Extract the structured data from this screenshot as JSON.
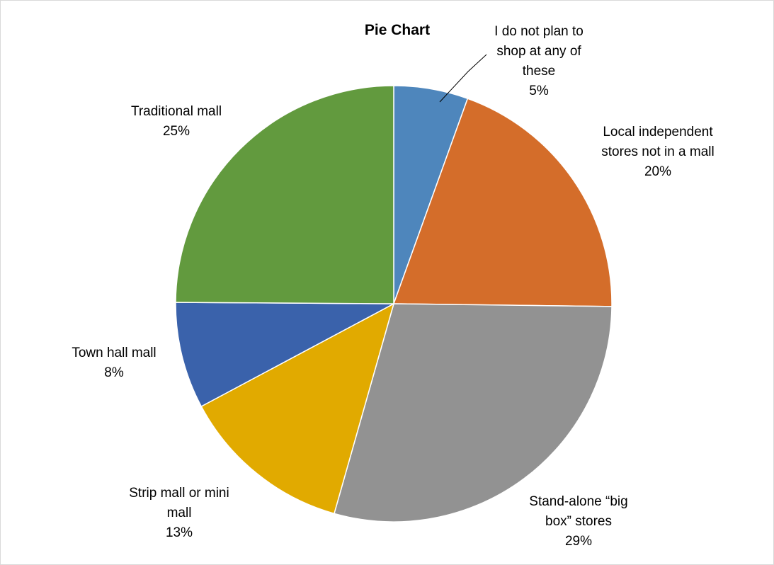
{
  "chart_data": {
    "type": "pie",
    "title": "Pie Chart",
    "slices": [
      {
        "label_lines": [
          "I do not plan to",
          "shop at any of",
          "these"
        ],
        "percent_label": "5%",
        "value": 5.5,
        "color": "#4e86bc"
      },
      {
        "label_lines": [
          "Local independent",
          "stores not in a mall"
        ],
        "percent_label": "20%",
        "value": 19.7,
        "color": "#d46d2a"
      },
      {
        "label_lines": [
          "Stand-alone “big",
          "box” stores"
        ],
        "percent_label": "29%",
        "value": 29.2,
        "color": "#929292"
      },
      {
        "label_lines": [
          "Strip mall or mini",
          "mall"
        ],
        "percent_label": "13%",
        "value": 12.8,
        "color": "#e1aa00"
      },
      {
        "label_lines": [
          "Town hall mall"
        ],
        "percent_label": "8%",
        "value": 7.9,
        "color": "#3a62ab"
      },
      {
        "label_lines": [
          "Traditional mall"
        ],
        "percent_label": "25%",
        "value": 24.9,
        "color": "#629a3e"
      }
    ],
    "legend": "none"
  }
}
